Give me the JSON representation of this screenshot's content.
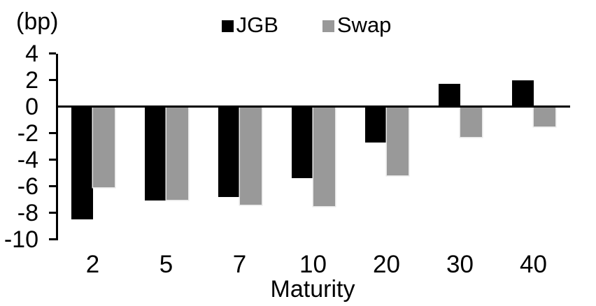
{
  "chart_data": {
    "type": "bar",
    "unit_label": "(bp)",
    "xlabel": "Maturity",
    "categories": [
      "2",
      "5",
      "7",
      "10",
      "20",
      "30",
      "40"
    ],
    "series": [
      {
        "name": "JGB",
        "color": "#000000",
        "values": [
          -8.5,
          -7.1,
          -6.8,
          -5.4,
          -2.7,
          1.7,
          2.0
        ]
      },
      {
        "name": "Swap",
        "color": "#999999",
        "values": [
          -6.1,
          -7.0,
          -7.4,
          -7.5,
          -5.2,
          -2.3,
          -1.5
        ]
      }
    ],
    "yticks": [
      4,
      2,
      0,
      -2,
      -4,
      -6,
      -8,
      -10
    ],
    "ylim": [
      -10,
      4
    ],
    "grid": false,
    "legend_position": "top-center",
    "axis_color": "#000000",
    "text_color": "#000000"
  }
}
